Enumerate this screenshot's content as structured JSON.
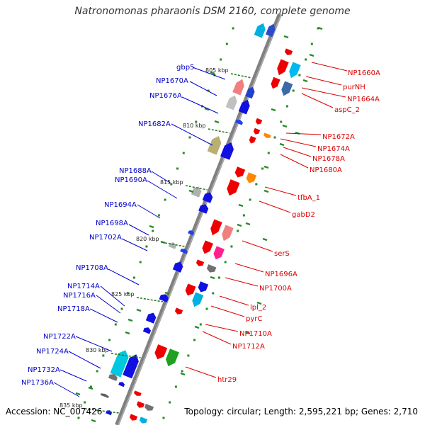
{
  "title": "Natronomonas pharaonis DSM 2160, complete genome",
  "accession": "Accession: NC_007426",
  "topology": "Topology: circular; Length: 2,595,221 bp; Genes: 2,710",
  "colors": {
    "forward_label": "#0000cc",
    "reverse_label": "#dd0000",
    "backbone": "#808080"
  },
  "kbp_markers": [
    "805 kbp",
    "810 kbp",
    "815 kbp",
    "820 kbp",
    "825 kbp",
    "830 kbp",
    "835 kbp"
  ],
  "forward_genes": [
    "gbp5",
    "NP1670A",
    "NP1676A",
    "NP1682A",
    "NP1688A",
    "NP1690A",
    "NP1694A",
    "NP1698A",
    "NP1702A",
    "NP1708A",
    "NP1714A",
    "NP1716A",
    "NP1718A",
    "NP1722A",
    "NP1724A",
    "NP1732A",
    "NP1736A"
  ],
  "reverse_genes": [
    "NP1660A",
    "purNH",
    "NP1664A",
    "aspC_2",
    "NP1672A",
    "NP1674A",
    "NP1678A",
    "NP1680A",
    "tfbA_1",
    "gabD2",
    "serS",
    "NP1696A",
    "NP1700A",
    "lpl_2",
    "pyrC",
    "NP1710A",
    "NP1712A",
    "htr29"
  ]
}
